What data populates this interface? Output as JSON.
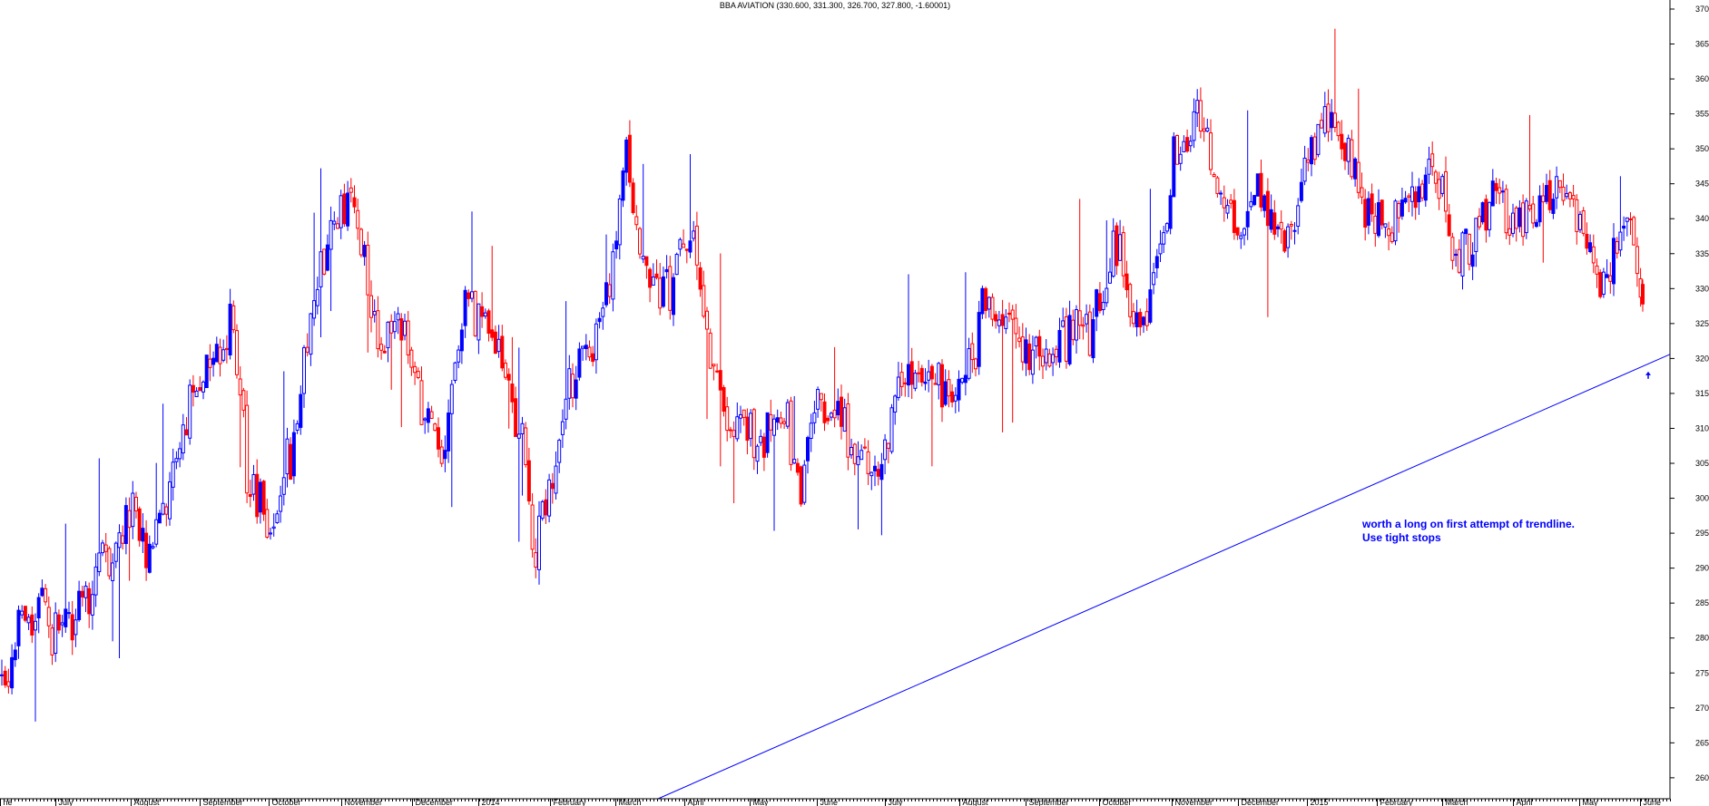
{
  "header": {
    "title": "BBA AVIATION (330.600, 331.300, 326.700, 327.800, -1.60001)"
  },
  "annotation": {
    "line1": "worth a long on first attempt of trendline.",
    "line2": "Use tight stops"
  },
  "colors": {
    "up": "#0000ff",
    "down": "#ff0000",
    "trendline": "#0000ff",
    "axis": "#000000",
    "background": "#ffffff"
  },
  "chart_data": {
    "type": "candlestick",
    "title": "BBA AVIATION (330.600, 331.300, 326.700, 327.800, -1.60001)",
    "ylim": [
      257,
      370
    ],
    "y_ticks": [
      260,
      265,
      270,
      275,
      280,
      285,
      290,
      295,
      300,
      305,
      310,
      315,
      320,
      325,
      330,
      335,
      340,
      345,
      350,
      355,
      360,
      365,
      370
    ],
    "grid": false,
    "month_labels": [
      {
        "label": "ne",
        "pos": 0
      },
      {
        "label": "July",
        "pos": 61
      },
      {
        "label": "August",
        "pos": 144
      },
      {
        "label": "September",
        "pos": 220
      },
      {
        "label": "October",
        "pos": 296
      },
      {
        "label": "November",
        "pos": 376
      },
      {
        "label": "December",
        "pos": 454
      },
      {
        "label": "2014",
        "pos": 527
      },
      {
        "label": "February",
        "pos": 606
      },
      {
        "label": "March",
        "pos": 678
      },
      {
        "label": "April",
        "pos": 754
      },
      {
        "label": "May",
        "pos": 826
      },
      {
        "label": "June",
        "pos": 900
      },
      {
        "label": "July",
        "pos": 975
      },
      {
        "label": "August",
        "pos": 1057
      },
      {
        "label": "September",
        "pos": 1130
      },
      {
        "label": "October",
        "pos": 1211
      },
      {
        "label": "November",
        "pos": 1291
      },
      {
        "label": "December",
        "pos": 1364
      },
      {
        "label": "2015",
        "pos": 1440
      },
      {
        "label": "February",
        "pos": 1517
      },
      {
        "label": "March",
        "pos": 1589
      },
      {
        "label": "April",
        "pos": 1667
      },
      {
        "label": "May",
        "pos": 1740
      },
      {
        "label": "June",
        "pos": 1807
      }
    ],
    "x_span": 1840,
    "trendline": {
      "from": [
        725,
        257
      ],
      "to": [
        1840,
        320.6
      ]
    },
    "arrow": {
      "pos": 1816,
      "value": 318
    },
    "last_bar": {
      "open": 330.6,
      "high": 331.3,
      "low": 326.7,
      "close": 327.8,
      "change": -1.60001
    },
    "anchors": [
      [
        0,
        275
      ],
      [
        8,
        270
      ],
      [
        20,
        282
      ],
      [
        45,
        285
      ],
      [
        65,
        280
      ],
      [
        95,
        287
      ],
      [
        125,
        292
      ],
      [
        140,
        298
      ],
      [
        165,
        293
      ],
      [
        200,
        309
      ],
      [
        230,
        319
      ],
      [
        255,
        325
      ],
      [
        275,
        302
      ],
      [
        300,
        296
      ],
      [
        320,
        307
      ],
      [
        345,
        328
      ],
      [
        370,
        341
      ],
      [
        395,
        341
      ],
      [
        415,
        322
      ],
      [
        440,
        326
      ],
      [
        470,
        311
      ],
      [
        490,
        308
      ],
      [
        510,
        327
      ],
      [
        540,
        326
      ],
      [
        560,
        314
      ],
      [
        575,
        312
      ],
      [
        590,
        292
      ],
      [
        605,
        302
      ],
      [
        625,
        316
      ],
      [
        645,
        320
      ],
      [
        665,
        327
      ],
      [
        678,
        336
      ],
      [
        690,
        350
      ],
      [
        705,
        334
      ],
      [
        725,
        330
      ],
      [
        740,
        331
      ],
      [
        760,
        340
      ],
      [
        775,
        327
      ],
      [
        795,
        312
      ],
      [
        815,
        310
      ],
      [
        840,
        309
      ],
      [
        865,
        311
      ],
      [
        880,
        301
      ],
      [
        900,
        314
      ],
      [
        925,
        311
      ],
      [
        945,
        306
      ],
      [
        965,
        301
      ],
      [
        985,
        316
      ],
      [
        1005,
        316
      ],
      [
        1025,
        319
      ],
      [
        1045,
        313
      ],
      [
        1065,
        316
      ],
      [
        1085,
        328
      ],
      [
        1105,
        326
      ],
      [
        1125,
        321
      ],
      [
        1145,
        320
      ],
      [
        1165,
        320
      ],
      [
        1185,
        326
      ],
      [
        1205,
        324
      ],
      [
        1230,
        338
      ],
      [
        1255,
        323
      ],
      [
        1275,
        334
      ],
      [
        1295,
        350
      ],
      [
        1320,
        355
      ],
      [
        1345,
        345
      ],
      [
        1365,
        337
      ],
      [
        1385,
        343
      ],
      [
        1405,
        339
      ],
      [
        1420,
        336
      ],
      [
        1440,
        350
      ],
      [
        1460,
        355
      ],
      [
        1480,
        352
      ],
      [
        1500,
        343
      ],
      [
        1520,
        338
      ],
      [
        1545,
        341
      ],
      [
        1565,
        345
      ],
      [
        1590,
        345
      ],
      [
        1605,
        332
      ],
      [
        1625,
        339
      ],
      [
        1645,
        343
      ],
      [
        1665,
        339
      ],
      [
        1685,
        342
      ],
      [
        1705,
        343
      ],
      [
        1720,
        344
      ],
      [
        1735,
        341
      ],
      [
        1750,
        337
      ],
      [
        1765,
        331
      ],
      [
        1780,
        337
      ],
      [
        1795,
        344
      ],
      [
        1808,
        329
      ]
    ]
  }
}
